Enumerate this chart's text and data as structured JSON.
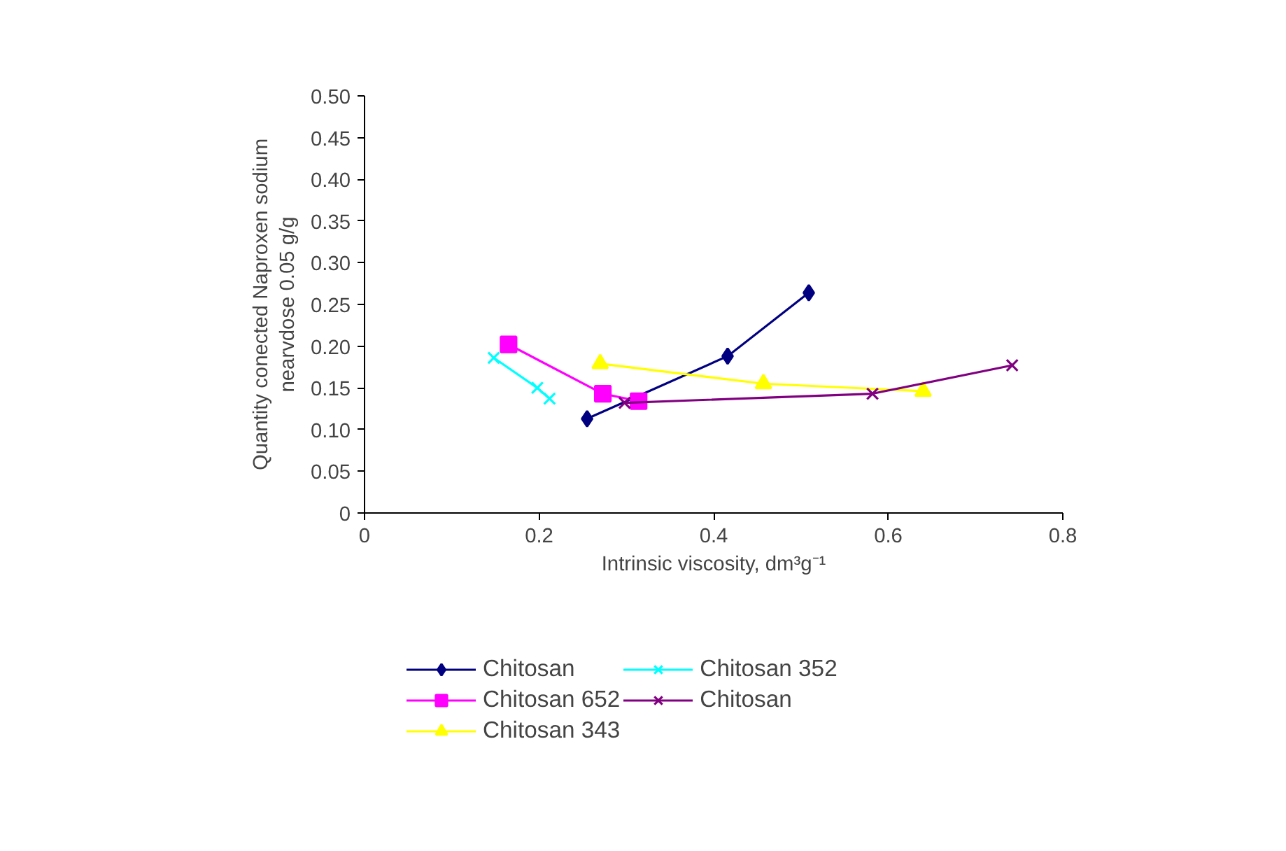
{
  "chart_data": {
    "type": "line",
    "xlabel": "Intrinsic viscosity, dm³g⁻¹",
    "ylabel": "Quantity conected Naproxen sodium\nnearvdose 0.05 g/g",
    "xlim": [
      0,
      0.8
    ],
    "xticks": [
      0,
      0.2,
      0.4,
      0.6,
      0.8
    ],
    "ylim": [
      0,
      0.5
    ],
    "yticks": [
      0,
      0.05,
      {
        "value": 0.1,
        "label": "0.10"
      },
      0.15,
      {
        "value": 0.2,
        "label": "0.20"
      },
      0.25,
      {
        "value": 0.3,
        "label": "0.30"
      },
      0.35,
      {
        "value": 0.4,
        "label": "0.40"
      },
      0.45,
      {
        "value": 0.5,
        "label": "0.50"
      }
    ],
    "grid": false,
    "legend": "bottom",
    "series": [
      {
        "name": "Chitosan",
        "color": "#000080",
        "marker": "diamond",
        "x": [
          0.255,
          0.416,
          0.509
        ],
        "values": [
          0.113,
          0.188,
          0.264
        ]
      },
      {
        "name": "Chitosan 652",
        "color": "#ff00ff",
        "marker": "square",
        "x": [
          0.165,
          0.273,
          0.314
        ],
        "values": [
          0.202,
          0.143,
          0.134
        ]
      },
      {
        "name": "Chitosan 343",
        "color": "#ffff00",
        "marker": "triangle",
        "x": [
          0.27,
          0.457,
          0.64
        ],
        "values": [
          0.179,
          0.155,
          0.146
        ]
      },
      {
        "name": "Chitosan 352",
        "color": "#00ffff",
        "marker": "cross",
        "x": [
          0.148,
          0.198,
          0.212
        ],
        "values": [
          0.186,
          0.15,
          0.137
        ]
      },
      {
        "name": "Chitosan",
        "color": "#800080",
        "marker": "cross",
        "x": [
          0.298,
          0.582,
          0.742
        ],
        "values": [
          0.132,
          0.143,
          0.177
        ]
      }
    ]
  }
}
